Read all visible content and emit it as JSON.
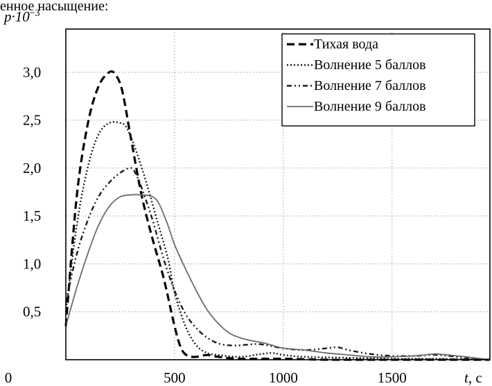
{
  "caption_fragment": "енное насыщение:",
  "chart_data": {
    "type": "line",
    "ylabel": "p·10",
    "ylabel_exp": "−3",
    "xlabel_var": "t",
    "xlabel_unit": ", с",
    "xlim": [
      0,
      1950
    ],
    "ylim": [
      0,
      3.45
    ],
    "x_ticks": [
      0,
      500,
      1000,
      1500
    ],
    "x_tick_labels": [
      "0",
      "500",
      "1000",
      "1500"
    ],
    "y_ticks": [
      0.5,
      1.0,
      1.5,
      2.0,
      2.5,
      3.0
    ],
    "y_tick_labels": [
      "0,5",
      "1,0",
      "1,5",
      "2,0",
      "2,5",
      "3,0"
    ],
    "grid": true,
    "legend_position": "top-right",
    "series": [
      {
        "name": "Тихая вода",
        "color": "#000000",
        "dash": "11,6",
        "width": 3.2,
        "x": [
          0,
          50,
          100,
          150,
          200,
          230,
          260,
          300,
          350,
          400,
          450,
          500,
          530,
          560,
          600,
          650,
          700,
          800,
          1000,
          1200,
          1500,
          1800,
          1950
        ],
        "y": [
          0.35,
          1.7,
          2.45,
          2.85,
          3.0,
          2.97,
          2.8,
          2.3,
          1.7,
          1.25,
          0.85,
          0.35,
          0.12,
          0.04,
          0.03,
          0.05,
          0.03,
          0.01,
          0.01,
          0.0,
          0.0,
          0.0,
          0.0
        ]
      },
      {
        "name": "Волнение 5 баллов",
        "color": "#1a1a1a",
        "dash": "2,3",
        "width": 2.4,
        "x": [
          0,
          50,
          100,
          150,
          200,
          250,
          280,
          320,
          370,
          420,
          470,
          500,
          550,
          600,
          650,
          700,
          800,
          900,
          950,
          1000,
          1100,
          1300,
          1500,
          1700,
          1950
        ],
        "y": [
          0.5,
          1.4,
          2.0,
          2.35,
          2.47,
          2.47,
          2.42,
          2.2,
          1.85,
          1.45,
          1.05,
          0.7,
          0.35,
          0.15,
          0.07,
          0.05,
          0.03,
          0.06,
          0.07,
          0.05,
          0.03,
          0.02,
          0.01,
          0.01,
          0.0
        ]
      },
      {
        "name": "Волнение 7 баллов",
        "color": "#1a1a1a",
        "dash": "7,4,2,4,2,4",
        "width": 2.4,
        "x": [
          0,
          50,
          100,
          150,
          200,
          250,
          300,
          330,
          360,
          400,
          450,
          500,
          550,
          600,
          650,
          700,
          750,
          800,
          850,
          900,
          1000,
          1100,
          1200,
          1250,
          1300,
          1400,
          1500,
          1600,
          1700,
          1800,
          1950
        ],
        "y": [
          0.6,
          1.1,
          1.45,
          1.7,
          1.85,
          1.95,
          2.0,
          1.9,
          1.72,
          1.45,
          1.05,
          0.72,
          0.48,
          0.33,
          0.23,
          0.17,
          0.15,
          0.15,
          0.16,
          0.16,
          0.12,
          0.1,
          0.12,
          0.13,
          0.1,
          0.06,
          0.04,
          0.04,
          0.05,
          0.03,
          0.0
        ]
      },
      {
        "name": "Волнение 9 баллов",
        "color": "#6b6b6b",
        "dash": "",
        "width": 1.8,
        "x": [
          0,
          50,
          100,
          150,
          200,
          250,
          300,
          350,
          400,
          430,
          470,
          500,
          550,
          600,
          650,
          700,
          750,
          800,
          850,
          900,
          950,
          1000,
          1100,
          1200,
          1300,
          1400,
          1500,
          1600,
          1650,
          1700,
          1800,
          1950
        ],
        "y": [
          0.35,
          0.75,
          1.1,
          1.4,
          1.6,
          1.7,
          1.72,
          1.72,
          1.7,
          1.62,
          1.4,
          1.2,
          0.95,
          0.72,
          0.52,
          0.38,
          0.28,
          0.23,
          0.2,
          0.18,
          0.15,
          0.12,
          0.1,
          0.07,
          0.05,
          0.03,
          0.03,
          0.04,
          0.05,
          0.06,
          0.04,
          0.0
        ]
      }
    ]
  }
}
